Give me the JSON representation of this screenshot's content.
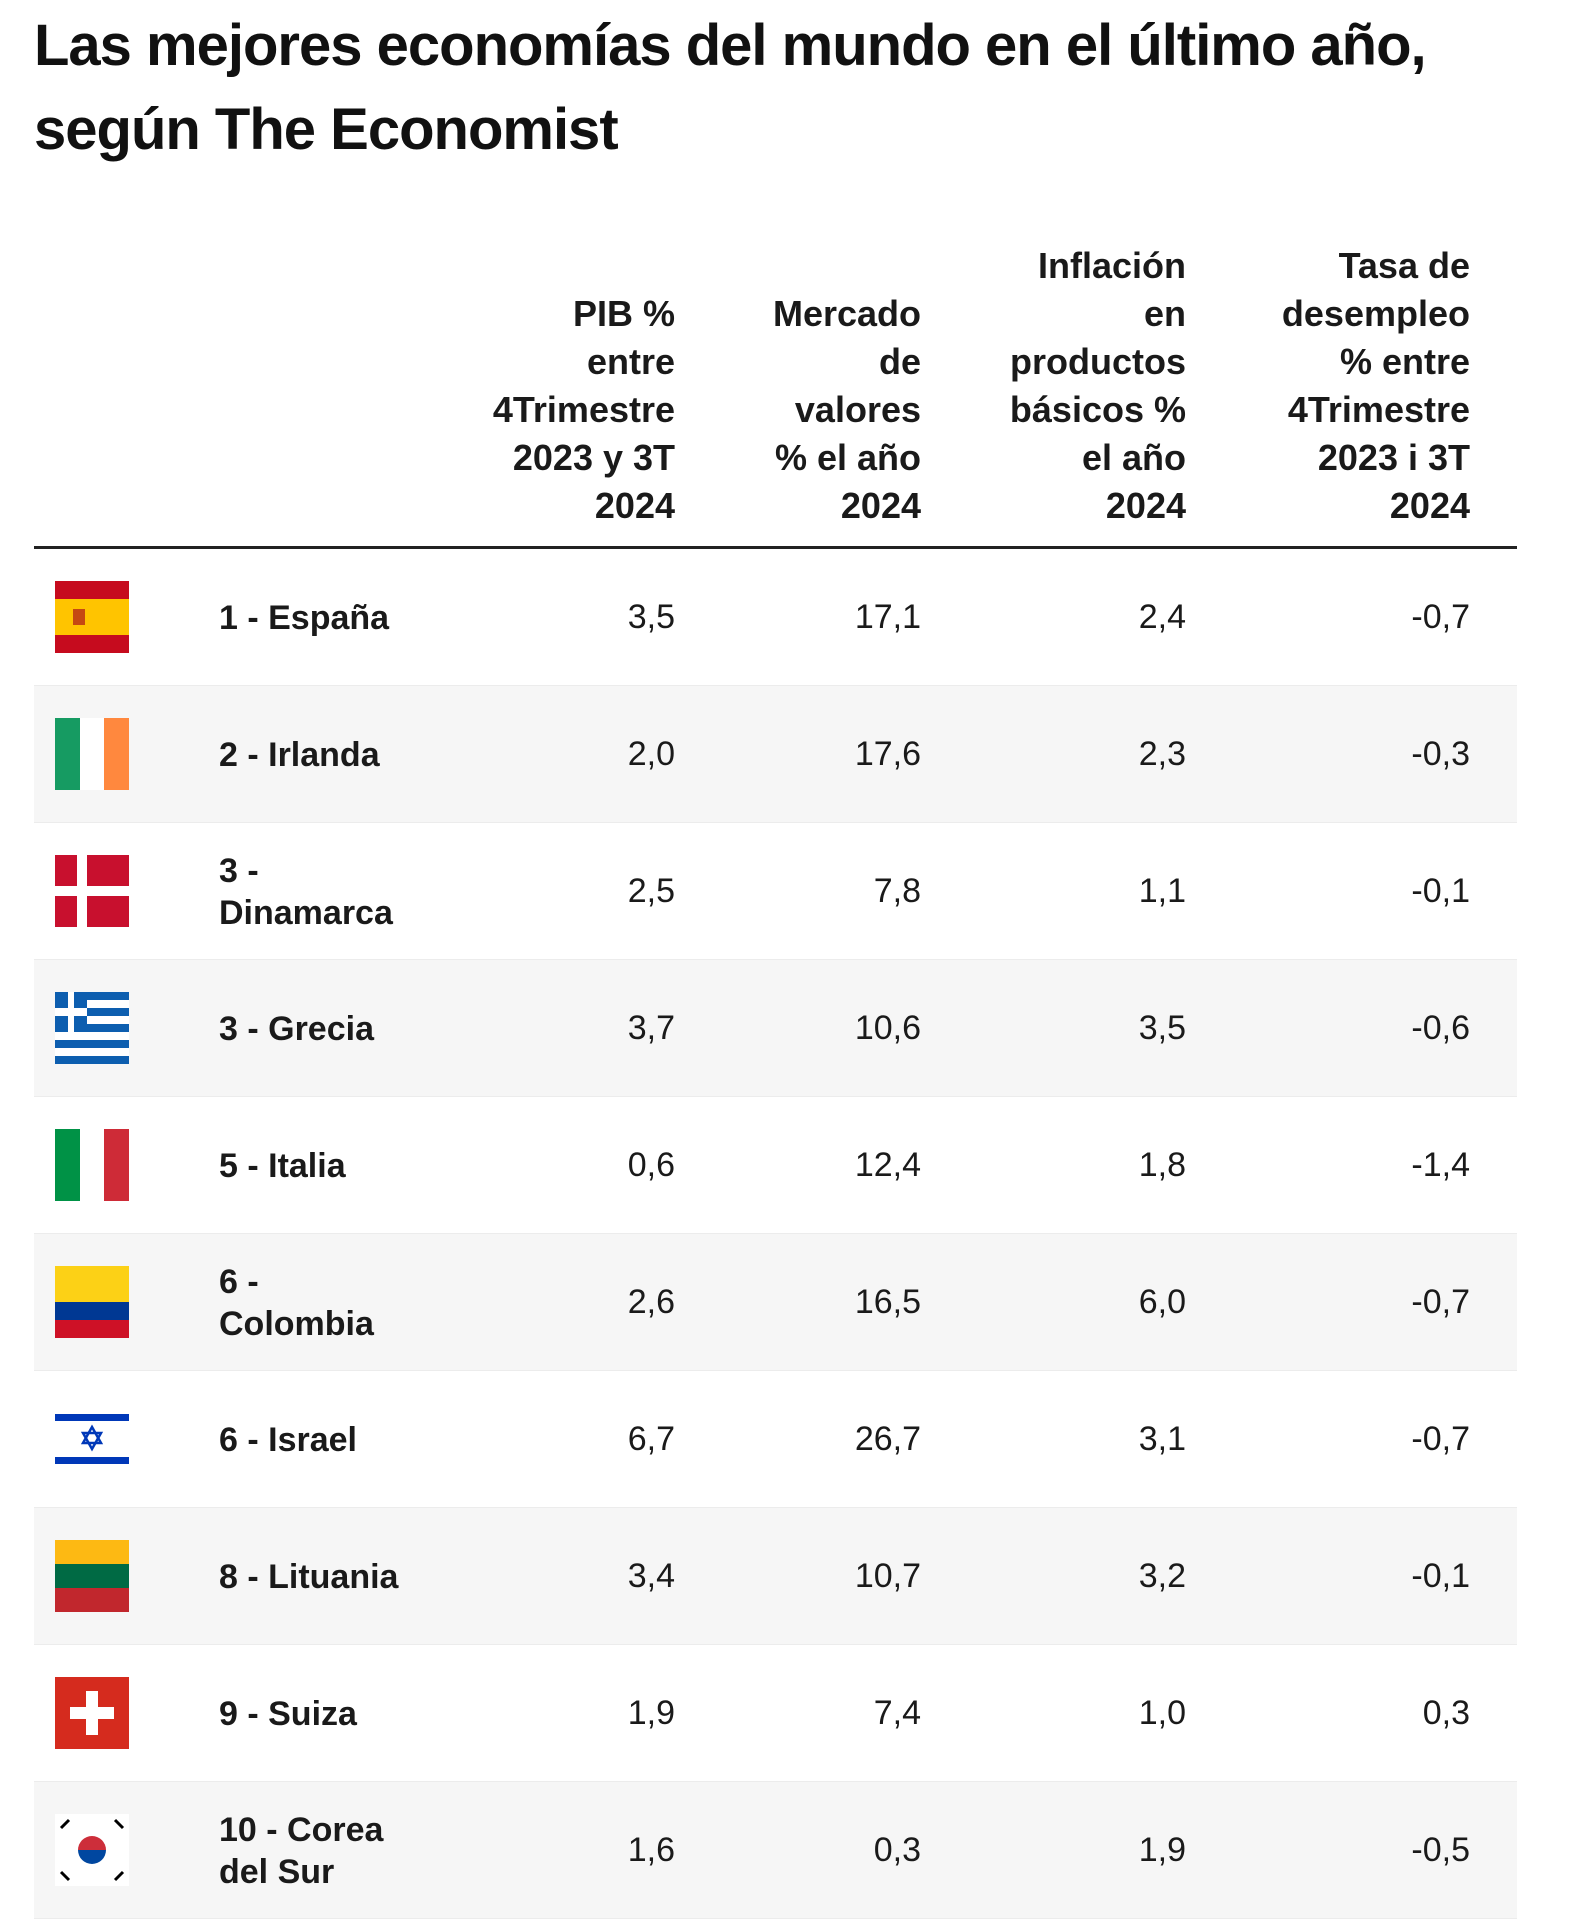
{
  "header": {
    "title": "Las mejores economías del mundo en el último año, según The Economist",
    "columns": [
      [
        "PIB %",
        "entre",
        "4Trimestre",
        "2023 y 3T",
        "2024"
      ],
      [
        "Mercado",
        "de",
        "valores",
        "% el año",
        "2024"
      ],
      [
        "Inflación",
        "en",
        "productos",
        "básicos %",
        "el año",
        "2024"
      ],
      [
        "Tasa de",
        "desempleo",
        "% entre",
        "4Trimestre",
        "2023 i 3T",
        "2024"
      ]
    ]
  },
  "table": {
    "rows": [
      {
        "country": "1 - España",
        "values": [
          "3,5",
          "17,1",
          "2,4",
          "-0,7"
        ]
      },
      {
        "country": "2 - Irlanda",
        "values": [
          "2,0",
          "17,6",
          "2,3",
          "-0,3"
        ]
      },
      {
        "country": "3 - Dinamarca",
        "values": [
          "2,5",
          "7,8",
          "1,1",
          "-0,1"
        ]
      },
      {
        "country": "3 - Grecia",
        "values": [
          "3,7",
          "10,6",
          "3,5",
          "-0,6"
        ]
      },
      {
        "country": "5 - Italia",
        "values": [
          "0,6",
          "12,4",
          "1,8",
          "-1,4"
        ]
      },
      {
        "country": "6 - Colombia",
        "values": [
          "2,6",
          "16,5",
          "6,0",
          "-0,7"
        ]
      },
      {
        "country": "6 - Israel",
        "values": [
          "6,7",
          "26,7",
          "3,1",
          "-0,7"
        ]
      },
      {
        "country": "8 - Lituania",
        "values": [
          "3,4",
          "10,7",
          "3,2",
          "-0,1"
        ]
      },
      {
        "country": "9 - Suiza",
        "values": [
          "1,9",
          "7,4",
          "1,0",
          "0,3"
        ]
      },
      {
        "country": "10 - Corea del Sur",
        "values": [
          "1,6",
          "0,3",
          "1,9",
          "-0,5"
        ]
      }
    ]
  }
}
